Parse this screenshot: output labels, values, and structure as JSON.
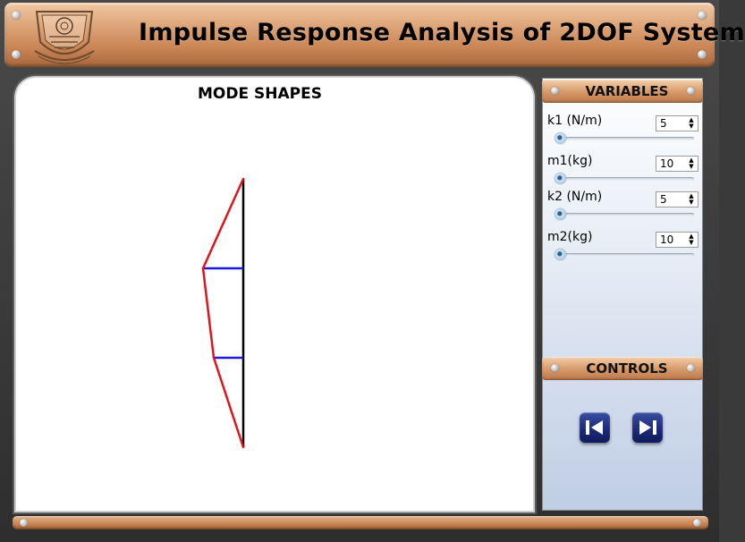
{
  "header": {
    "title": "Impulse Response Analysis of 2DOF System",
    "logo_icon": "institute-emblem-icon"
  },
  "canvas": {
    "title": "MODE SHAPES"
  },
  "mode_shape": {
    "chart_data": {
      "type": "line",
      "series": [
        {
          "values": [
            [
              0,
              0
            ],
            [
              -0.33,
              1
            ],
            [
              -0.45,
              2
            ],
            [
              0,
              3
            ]
          ]
        }
      ],
      "masses_at": [
        1,
        2
      ]
    },
    "colors": {
      "mode_line": "#e0141e",
      "mass_line": "#1a1adf",
      "axis": "#000000"
    }
  },
  "variables_panel": {
    "title": "VARIABLES",
    "items": [
      {
        "label": "k1 (N/m)",
        "value": "5",
        "slider": 0
      },
      {
        "label": "m1(kg)",
        "value": "10",
        "slider": 0
      },
      {
        "label": "k2 (N/m)",
        "value": "5",
        "slider": 0
      },
      {
        "label": "m2(kg)",
        "value": "10",
        "slider": 0
      }
    ]
  },
  "controls_panel": {
    "title": "CONTROLS",
    "buttons": [
      {
        "icon": "step-back-icon"
      },
      {
        "icon": "step-forward-icon"
      }
    ]
  }
}
